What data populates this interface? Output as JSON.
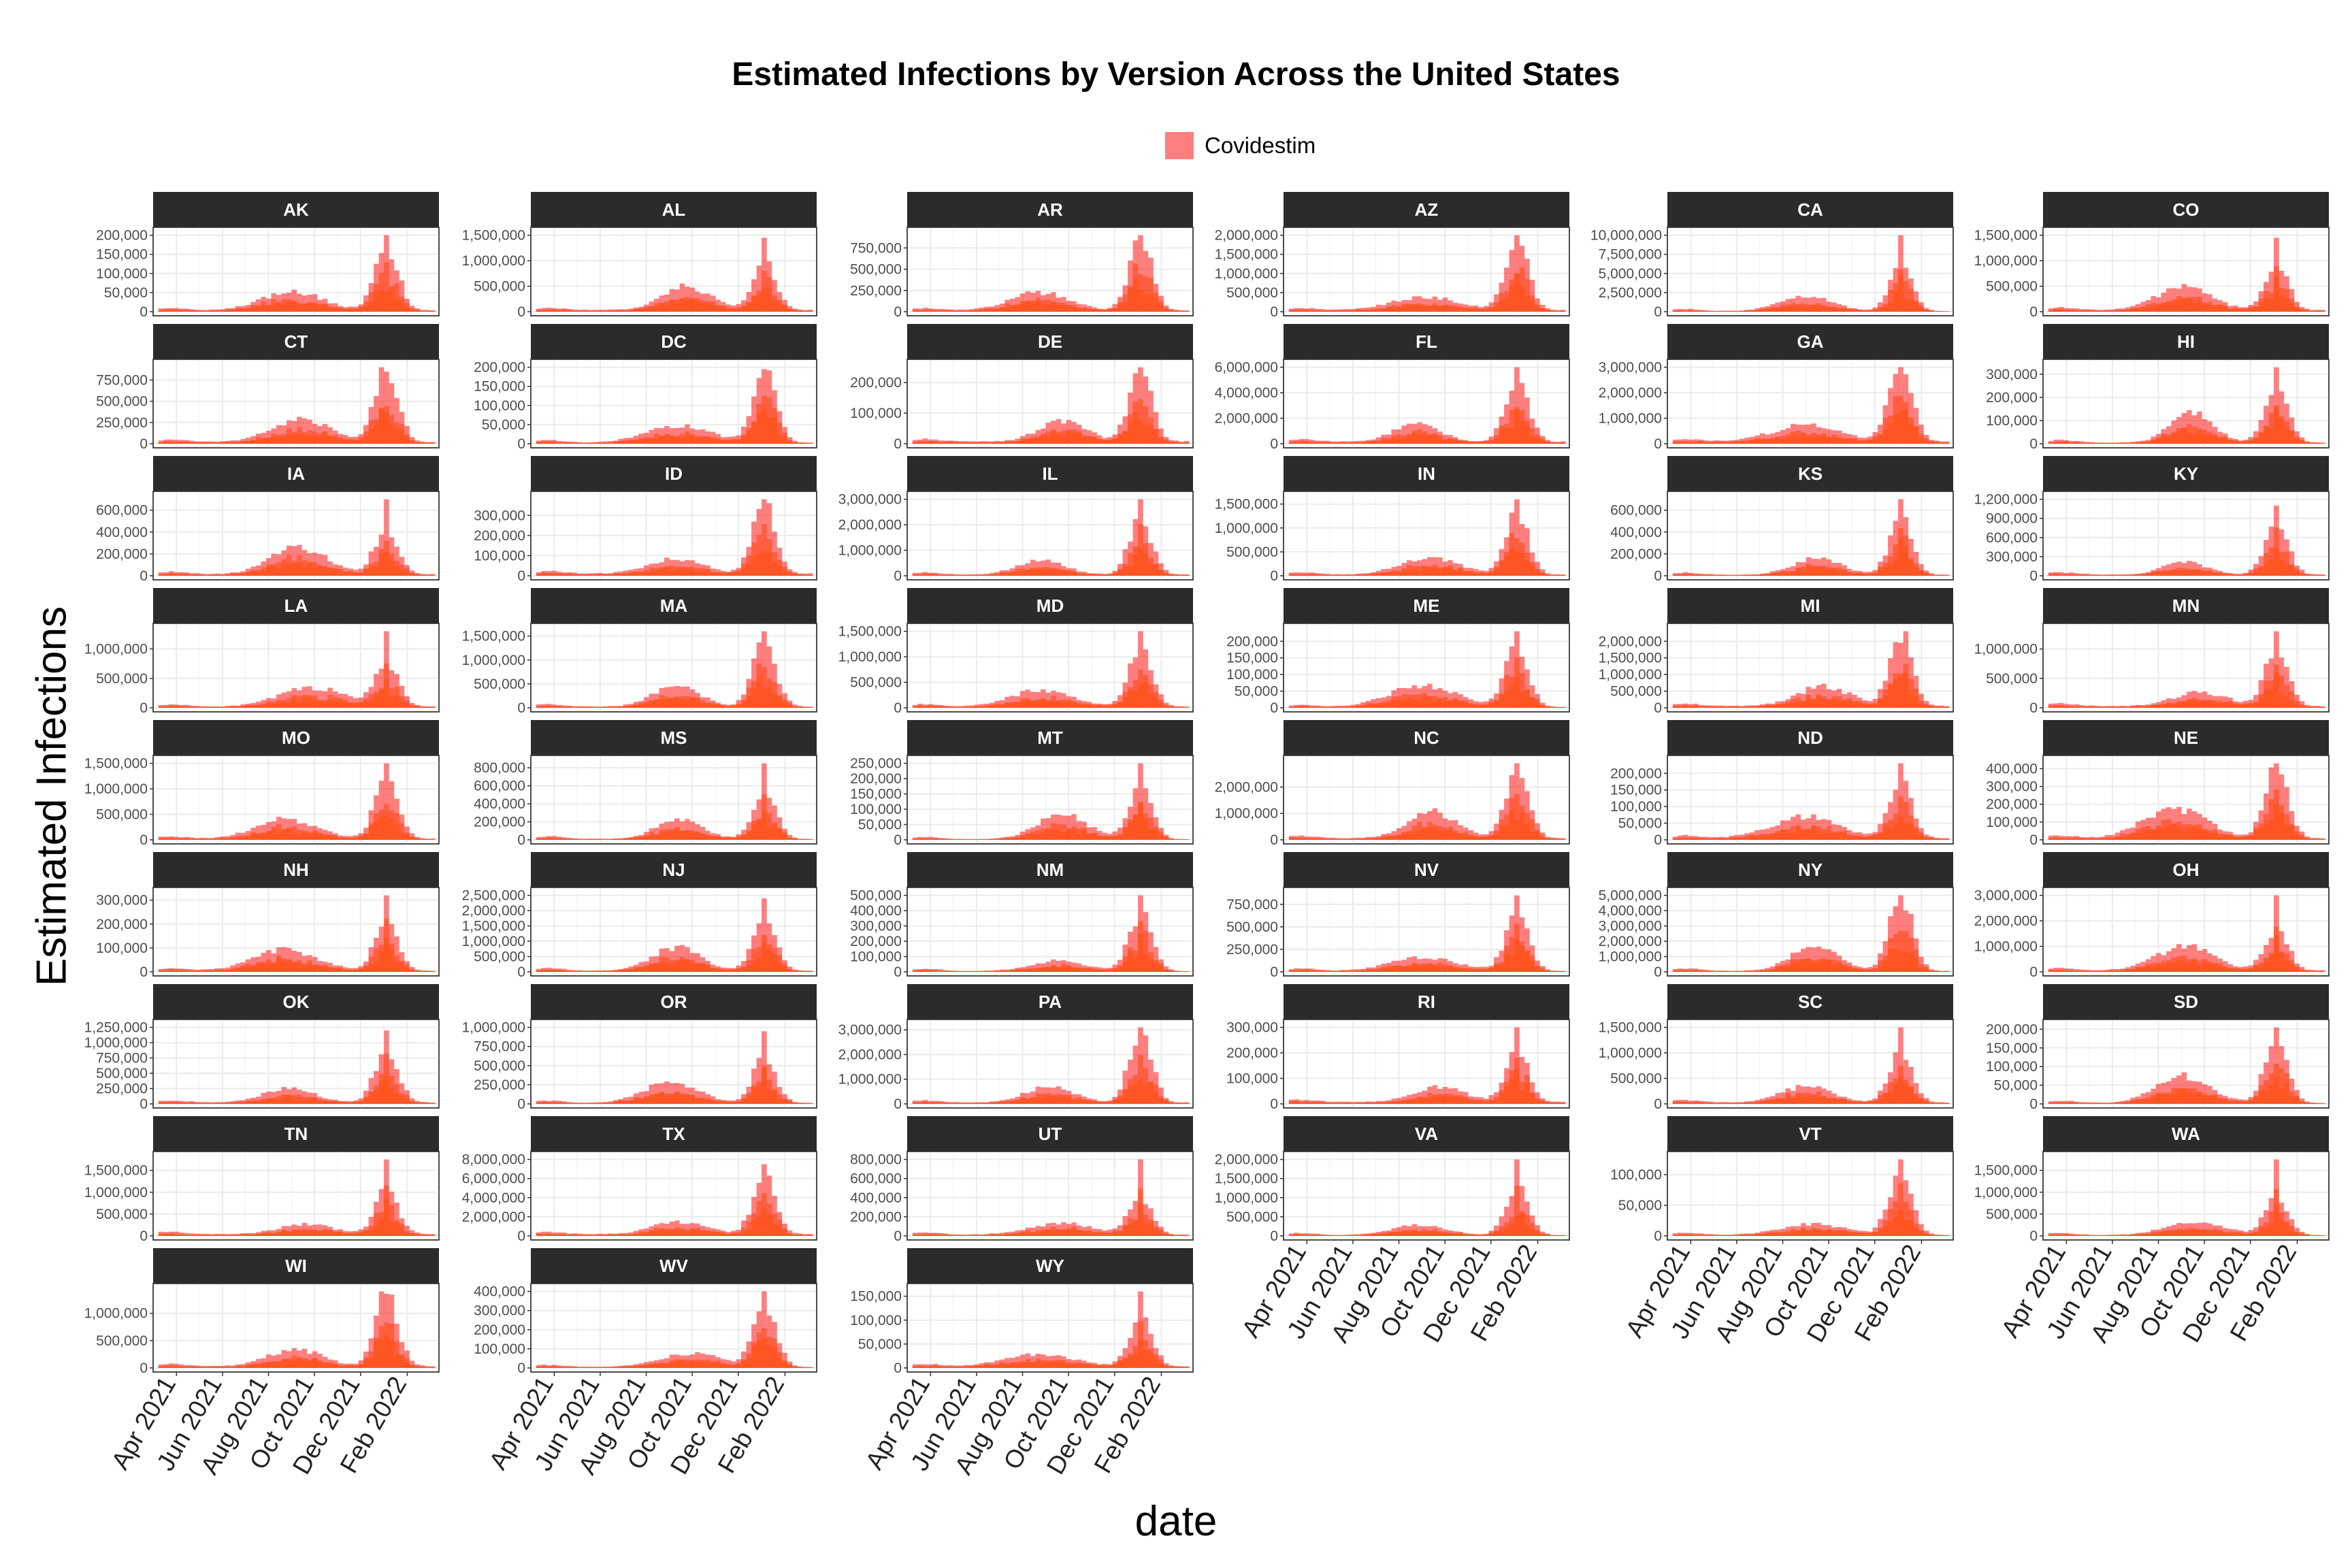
{
  "title": "Estimated Infections by Version Across the United States",
  "legend": {
    "label": "Covidestim",
    "color": "#ff0000"
  },
  "colors": {
    "series_a": "#ff0000",
    "series_b": "#ff7a00",
    "series_c": "#f2b200",
    "strip_bg": "#2b2b2b",
    "strip_text": "#ffffff",
    "grid": "#ebebeb"
  },
  "chart_data": {
    "type": "area",
    "title": "Estimated Infections by Version Across the United States",
    "xlabel": "date",
    "ylabel": "Estimated Infections",
    "x_ticks": [
      "Apr 2021",
      "Jun 2021",
      "Aug 2021",
      "Oct 2021",
      "Dec 2021",
      "Feb 2022"
    ],
    "x_range": [
      "2021-03-01",
      "2022-03-15"
    ],
    "legend_position": "top",
    "grid": true,
    "note": "Each panel shows three overlapping translucent series (red, orange, yellow) of weekly estimated infections; values below are approximate peaks read from the panels. Only the red series is labeled (Covidestim).",
    "panels": [
      {
        "state": "AK",
        "yticks": [
          0,
          50000,
          100000,
          150000,
          200000
        ],
        "series": [
          {
            "name": "Covidestim",
            "peak": 200000
          }
        ]
      },
      {
        "state": "AL",
        "yticks": [
          0,
          500000,
          1000000,
          1500000
        ],
        "series": [
          {
            "name": "Covidestim",
            "peak": 1450000
          }
        ]
      },
      {
        "state": "AR",
        "yticks": [
          0,
          250000,
          500000,
          750000
        ],
        "series": [
          {
            "name": "Covidestim",
            "peak": 900000
          }
        ]
      },
      {
        "state": "AZ",
        "yticks": [
          0,
          500000,
          1000000,
          1500000,
          2000000
        ],
        "series": [
          {
            "name": "Covidestim",
            "peak": 2000000
          }
        ]
      },
      {
        "state": "CA",
        "yticks": [
          0,
          2500000,
          5000000,
          7500000,
          10000000
        ],
        "series": [
          {
            "name": "Covidestim",
            "peak": 10000000
          }
        ]
      },
      {
        "state": "CO",
        "yticks": [
          0,
          500000,
          1000000,
          1500000
        ],
        "series": [
          {
            "name": "Covidestim",
            "peak": 1450000
          }
        ]
      },
      {
        "state": "CT",
        "yticks": [
          0,
          250000,
          500000,
          750000
        ],
        "series": [
          {
            "name": "Covidestim",
            "peak": 900000
          }
        ]
      },
      {
        "state": "DC",
        "yticks": [
          0,
          50000,
          100000,
          150000,
          200000
        ],
        "series": [
          {
            "name": "Covidestim",
            "peak": 195000
          }
        ]
      },
      {
        "state": "DE",
        "yticks": [
          0,
          100000,
          200000
        ],
        "series": [
          {
            "name": "Covidestim",
            "peak": 250000
          }
        ]
      },
      {
        "state": "FL",
        "yticks": [
          0,
          2000000,
          4000000,
          6000000
        ],
        "series": [
          {
            "name": "Covidestim",
            "peak": 6000000
          }
        ]
      },
      {
        "state": "GA",
        "yticks": [
          0,
          1000000,
          2000000,
          3000000
        ],
        "series": [
          {
            "name": "Covidestim",
            "peak": 3000000
          }
        ]
      },
      {
        "state": "HI",
        "yticks": [
          0,
          100000,
          200000,
          300000
        ],
        "series": [
          {
            "name": "Covidestim",
            "peak": 330000
          }
        ]
      },
      {
        "state": "IA",
        "yticks": [
          0,
          200000,
          400000,
          600000
        ],
        "series": [
          {
            "name": "Covidestim",
            "peak": 700000
          }
        ]
      },
      {
        "state": "ID",
        "yticks": [
          0,
          100000,
          200000,
          300000
        ],
        "series": [
          {
            "name": "Covidestim",
            "peak": 380000
          }
        ]
      },
      {
        "state": "IL",
        "yticks": [
          0,
          1000000,
          2000000,
          3000000
        ],
        "series": [
          {
            "name": "Covidestim",
            "peak": 3000000
          }
        ]
      },
      {
        "state": "IN",
        "yticks": [
          0,
          500000,
          1000000,
          1500000
        ],
        "series": [
          {
            "name": "Covidestim",
            "peak": 1600000
          }
        ]
      },
      {
        "state": "KS",
        "yticks": [
          0,
          200000,
          400000,
          600000
        ],
        "series": [
          {
            "name": "Covidestim",
            "peak": 700000
          }
        ]
      },
      {
        "state": "KY",
        "yticks": [
          0,
          300000,
          600000,
          900000,
          1200000
        ],
        "series": [
          {
            "name": "Covidestim",
            "peak": 1100000
          }
        ]
      },
      {
        "state": "LA",
        "yticks": [
          0,
          500000,
          1000000
        ],
        "series": [
          {
            "name": "Covidestim",
            "peak": 1300000
          }
        ]
      },
      {
        "state": "MA",
        "yticks": [
          0,
          500000,
          1000000,
          1500000
        ],
        "series": [
          {
            "name": "Covidestim",
            "peak": 1600000
          }
        ]
      },
      {
        "state": "MD",
        "yticks": [
          0,
          500000,
          1000000,
          1500000
        ],
        "series": [
          {
            "name": "Covidestim",
            "peak": 1500000
          }
        ]
      },
      {
        "state": "ME",
        "yticks": [
          0,
          50000,
          100000,
          150000,
          200000
        ],
        "series": [
          {
            "name": "Covidestim",
            "peak": 230000
          }
        ]
      },
      {
        "state": "MI",
        "yticks": [
          0,
          500000,
          1000000,
          1500000,
          2000000
        ],
        "series": [
          {
            "name": "Covidestim",
            "peak": 2300000
          }
        ]
      },
      {
        "state": "MN",
        "yticks": [
          0,
          500000,
          1000000
        ],
        "series": [
          {
            "name": "Covidestim",
            "peak": 1300000
          }
        ]
      },
      {
        "state": "MO",
        "yticks": [
          0,
          500000,
          1000000,
          1500000
        ],
        "series": [
          {
            "name": "Covidestim",
            "peak": 1500000
          }
        ]
      },
      {
        "state": "MS",
        "yticks": [
          0,
          200000,
          400000,
          600000,
          800000
        ],
        "series": [
          {
            "name": "Covidestim",
            "peak": 850000
          }
        ]
      },
      {
        "state": "MT",
        "yticks": [
          0,
          50000,
          100000,
          150000,
          200000,
          250000
        ],
        "series": [
          {
            "name": "Covidestim",
            "peak": 250000
          }
        ]
      },
      {
        "state": "NC",
        "yticks": [
          0,
          1000000,
          2000000
        ],
        "series": [
          {
            "name": "Covidestim",
            "peak": 2900000
          }
        ]
      },
      {
        "state": "ND",
        "yticks": [
          0,
          50000,
          100000,
          150000,
          200000
        ],
        "series": [
          {
            "name": "Covidestim",
            "peak": 230000
          }
        ]
      },
      {
        "state": "NE",
        "yticks": [
          0,
          100000,
          200000,
          300000,
          400000
        ],
        "series": [
          {
            "name": "Covidestim",
            "peak": 430000
          }
        ]
      },
      {
        "state": "NH",
        "yticks": [
          0,
          100000,
          200000,
          300000
        ],
        "series": [
          {
            "name": "Covidestim",
            "peak": 320000
          }
        ]
      },
      {
        "state": "NJ",
        "yticks": [
          0,
          500000,
          1000000,
          1500000,
          2000000,
          2500000
        ],
        "series": [
          {
            "name": "Covidestim",
            "peak": 2400000
          }
        ]
      },
      {
        "state": "NM",
        "yticks": [
          0,
          100000,
          200000,
          300000,
          400000,
          500000
        ],
        "series": [
          {
            "name": "Covidestim",
            "peak": 500000
          }
        ]
      },
      {
        "state": "NV",
        "yticks": [
          0,
          250000,
          500000,
          750000
        ],
        "series": [
          {
            "name": "Covidestim",
            "peak": 850000
          }
        ]
      },
      {
        "state": "NY",
        "yticks": [
          0,
          1000000,
          2000000,
          3000000,
          4000000,
          5000000
        ],
        "series": [
          {
            "name": "Covidestim",
            "peak": 5000000
          }
        ]
      },
      {
        "state": "OH",
        "yticks": [
          0,
          1000000,
          2000000,
          3000000
        ],
        "series": [
          {
            "name": "Covidestim",
            "peak": 3000000
          }
        ]
      },
      {
        "state": "OK",
        "yticks": [
          0,
          250000,
          500000,
          750000,
          1000000,
          1250000
        ],
        "series": [
          {
            "name": "Covidestim",
            "peak": 1200000
          }
        ]
      },
      {
        "state": "OR",
        "yticks": [
          0,
          250000,
          500000,
          750000,
          1000000
        ],
        "series": [
          {
            "name": "Covidestim",
            "peak": 950000
          }
        ]
      },
      {
        "state": "PA",
        "yticks": [
          0,
          1000000,
          2000000,
          3000000
        ],
        "series": [
          {
            "name": "Covidestim",
            "peak": 3100000
          }
        ]
      },
      {
        "state": "RI",
        "yticks": [
          0,
          100000,
          200000,
          300000
        ],
        "series": [
          {
            "name": "Covidestim",
            "peak": 300000
          }
        ]
      },
      {
        "state": "SC",
        "yticks": [
          0,
          500000,
          1000000,
          1500000
        ],
        "series": [
          {
            "name": "Covidestim",
            "peak": 1500000
          }
        ]
      },
      {
        "state": "SD",
        "yticks": [
          0,
          50000,
          100000,
          150000,
          200000
        ],
        "series": [
          {
            "name": "Covidestim",
            "peak": 205000
          }
        ]
      },
      {
        "state": "TN",
        "yticks": [
          0,
          500000,
          1000000,
          1500000
        ],
        "series": [
          {
            "name": "Covidestim",
            "peak": 1750000
          }
        ]
      },
      {
        "state": "TX",
        "yticks": [
          0,
          2000000,
          4000000,
          6000000,
          8000000
        ],
        "series": [
          {
            "name": "Covidestim",
            "peak": 7500000
          }
        ]
      },
      {
        "state": "UT",
        "yticks": [
          0,
          200000,
          400000,
          600000,
          800000
        ],
        "series": [
          {
            "name": "Covidestim",
            "peak": 800000
          }
        ]
      },
      {
        "state": "VA",
        "yticks": [
          0,
          500000,
          1000000,
          1500000,
          2000000
        ],
        "series": [
          {
            "name": "Covidestim",
            "peak": 2000000
          }
        ]
      },
      {
        "state": "VT",
        "yticks": [
          0,
          50000,
          100000
        ],
        "series": [
          {
            "name": "Covidestim",
            "peak": 125000
          }
        ]
      },
      {
        "state": "WA",
        "yticks": [
          0,
          500000,
          1000000,
          1500000
        ],
        "series": [
          {
            "name": "Covidestim",
            "peak": 1750000
          }
        ]
      },
      {
        "state": "WI",
        "yticks": [
          0,
          500000,
          1000000
        ],
        "series": [
          {
            "name": "Covidestim",
            "peak": 1400000
          }
        ]
      },
      {
        "state": "WV",
        "yticks": [
          0,
          100000,
          200000,
          300000,
          400000
        ],
        "series": [
          {
            "name": "Covidestim",
            "peak": 400000
          }
        ]
      },
      {
        "state": "WY",
        "yticks": [
          0,
          50000,
          100000,
          150000
        ],
        "series": [
          {
            "name": "Covidestim",
            "peak": 160000
          }
        ]
      }
    ]
  }
}
